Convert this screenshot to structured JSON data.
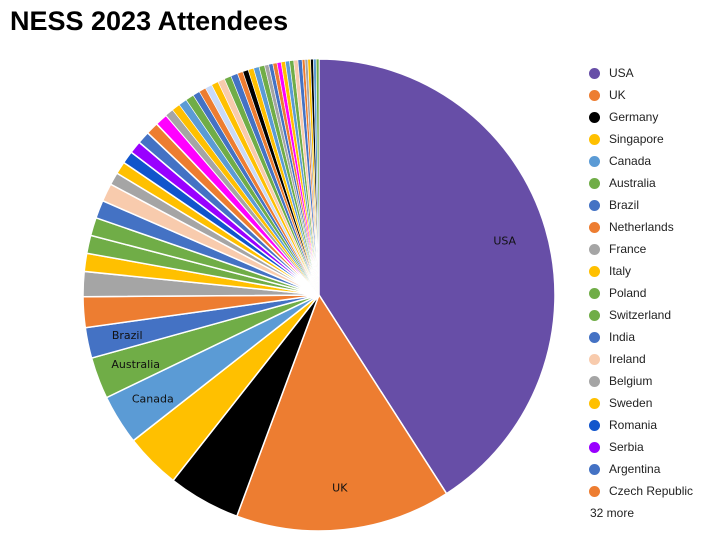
{
  "chart_data": {
    "type": "pie",
    "title": "NESS 2023 Attendees",
    "slices": [
      {
        "label": "USA",
        "value": 43.0,
        "color": "#674ea7",
        "show_label": true
      },
      {
        "label": "UK",
        "value": 15.5,
        "color": "#ed7d31",
        "show_label": true
      },
      {
        "label": "Germany",
        "value": 5.2,
        "color": "#000000",
        "show_label": false
      },
      {
        "label": "Singapore",
        "value": 4.0,
        "color": "#ffc000",
        "show_label": false
      },
      {
        "label": "Canada",
        "value": 3.6,
        "color": "#5b9bd5",
        "show_label": true
      },
      {
        "label": "Australia",
        "value": 3.0,
        "color": "#70ad47",
        "show_label": true
      },
      {
        "label": "Brazil",
        "value": 2.2,
        "color": "#4472c4",
        "show_label": true
      },
      {
        "label": "Netherlands",
        "value": 2.2,
        "color": "#ed7d31",
        "show_label": false
      },
      {
        "label": "France",
        "value": 1.8,
        "color": "#a5a5a5",
        "show_label": false
      },
      {
        "label": "Italy",
        "value": 1.3,
        "color": "#ffc000",
        "show_label": false
      },
      {
        "label": "Poland",
        "value": 1.3,
        "color": "#70ad47",
        "show_label": false
      },
      {
        "label": "Switzerland",
        "value": 1.3,
        "color": "#70ad47",
        "show_label": false
      },
      {
        "label": "India",
        "value": 1.3,
        "color": "#4472c4",
        "show_label": false
      },
      {
        "label": "Ireland",
        "value": 1.3,
        "color": "#f8cbad",
        "show_label": false
      },
      {
        "label": "Belgium",
        "value": 0.9,
        "color": "#a5a5a5",
        "show_label": false
      },
      {
        "label": "Sweden",
        "value": 0.9,
        "color": "#ffc000",
        "show_label": false
      },
      {
        "label": "Romania",
        "value": 0.9,
        "color": "#1155cc",
        "show_label": false
      },
      {
        "label": "Serbia",
        "value": 0.9,
        "color": "#9900ff",
        "show_label": false
      },
      {
        "label": "Argentina",
        "value": 0.9,
        "color": "#4472c4",
        "show_label": false
      },
      {
        "label": "Czech Republic",
        "value": 0.9,
        "color": "#ed7d31",
        "show_label": false
      }
    ],
    "other_slices": {
      "count": 32,
      "values": [
        0.9,
        0.6,
        0.6,
        0.6,
        0.6,
        0.5,
        0.5,
        0.5,
        0.5,
        0.5,
        0.5,
        0.5,
        0.4,
        0.4,
        0.4,
        0.4,
        0.4,
        0.3,
        0.3,
        0.3,
        0.3,
        0.3,
        0.3,
        0.3,
        0.3,
        0.3,
        0.2,
        0.2,
        0.2,
        0.2,
        0.2,
        0.2
      ],
      "colors": [
        "#ff00ff",
        "#a5a5a5",
        "#ffc000",
        "#5b9bd5",
        "#70ad47",
        "#4472c4",
        "#ed7d31",
        "#c9daf8",
        "#ffc000",
        "#f8cbad",
        "#70ad47",
        "#4472c4",
        "#ed7d31",
        "#000000",
        "#ffc000",
        "#5b9bd5",
        "#70ad47",
        "#a5a5a5",
        "#4472c4",
        "#ed7d31",
        "#ff00ff",
        "#ffc000",
        "#5b9bd5",
        "#70ad47",
        "#f8cbad",
        "#4472c4",
        "#ed7d31",
        "#a5a5a5",
        "#ffc000",
        "#000000",
        "#5b9bd5",
        "#70ad47"
      ]
    },
    "legend": {
      "position": "right",
      "more_text": "32 more"
    }
  }
}
